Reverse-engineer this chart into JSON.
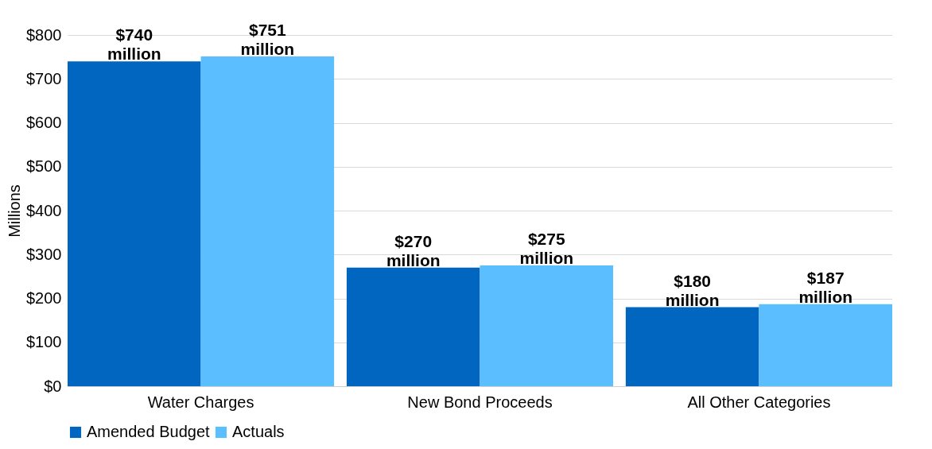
{
  "chart_data": {
    "type": "bar",
    "ylabel": "Millions",
    "categories": [
      "Water Charges",
      "New Bond Proceeds",
      "All Other Categories"
    ],
    "series": [
      {
        "name": "Amended Budget",
        "color": "#0066c0",
        "values": [
          740,
          270,
          180
        ],
        "value_labels": [
          "$740 million",
          "$270 million",
          "$180 million"
        ]
      },
      {
        "name": "Actuals",
        "color": "#5bbfff",
        "values": [
          751,
          275,
          187
        ],
        "value_labels": [
          "$751 million",
          "$275 million",
          "$187 million"
        ]
      }
    ],
    "ylim": [
      0,
      800
    ],
    "yticks": [
      {
        "value": 0,
        "label": "$0"
      },
      {
        "value": 100,
        "label": "$100"
      },
      {
        "value": 200,
        "label": "$200"
      },
      {
        "value": 300,
        "label": "$300"
      },
      {
        "value": 400,
        "label": "$400"
      },
      {
        "value": 500,
        "label": "$500"
      },
      {
        "value": 600,
        "label": "$600"
      },
      {
        "value": 700,
        "label": "$700"
      },
      {
        "value": 800,
        "label": "$800"
      }
    ],
    "grid": "y",
    "legend": "bottom"
  }
}
